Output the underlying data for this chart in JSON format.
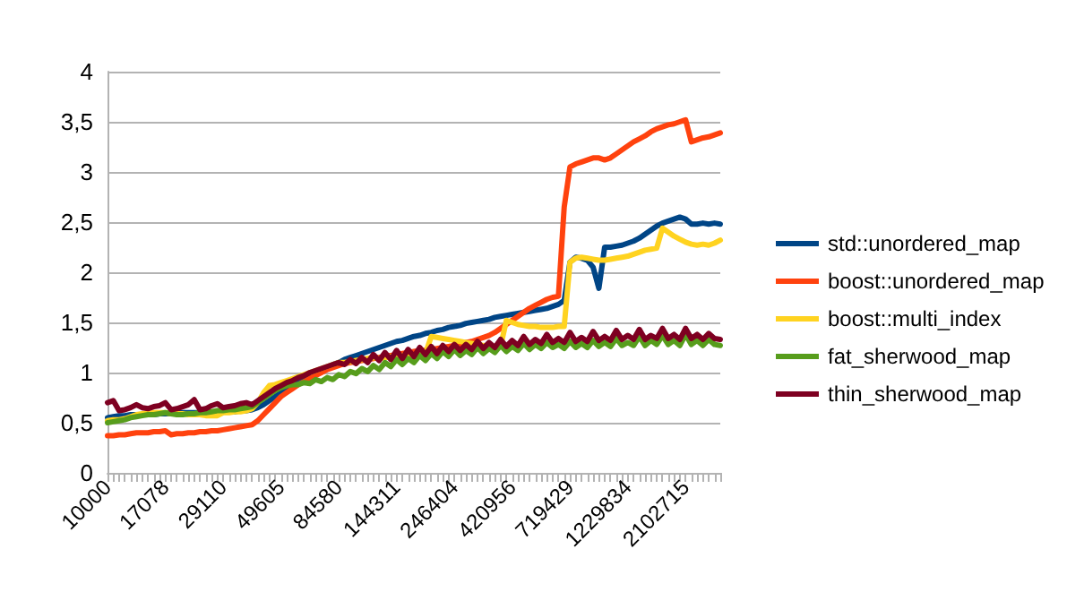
{
  "chart_data": {
    "type": "line",
    "categories": [
      "10000",
      null,
      null,
      null,
      null,
      null,
      null,
      null,
      null,
      null,
      "17078",
      null,
      null,
      null,
      null,
      null,
      null,
      null,
      null,
      null,
      "29110",
      null,
      null,
      null,
      null,
      null,
      null,
      null,
      null,
      null,
      "49605",
      null,
      null,
      null,
      null,
      null,
      null,
      null,
      null,
      null,
      "84580",
      null,
      null,
      null,
      null,
      null,
      null,
      null,
      null,
      null,
      "144311",
      null,
      null,
      null,
      null,
      null,
      null,
      null,
      null,
      null,
      "246404",
      null,
      null,
      null,
      null,
      null,
      null,
      null,
      null,
      null,
      "420956",
      null,
      null,
      null,
      null,
      null,
      null,
      null,
      null,
      null,
      "719429",
      null,
      null,
      null,
      null,
      null,
      null,
      null,
      null,
      null,
      "1229834",
      null,
      null,
      null,
      null,
      null,
      null,
      null,
      null,
      null,
      "2102715",
      null,
      null,
      null,
      null,
      null,
      null
    ],
    "series": [
      {
        "name": "std::unordered_map",
        "color": "#004586",
        "values": [
          0.55,
          0.56,
          0.57,
          0.57,
          0.58,
          0.58,
          0.58,
          0.58,
          0.58,
          0.59,
          0.59,
          0.59,
          0.6,
          0.6,
          0.6,
          0.6,
          0.6,
          0.6,
          0.6,
          0.61,
          0.61,
          0.61,
          0.61,
          0.62,
          0.62,
          0.63,
          0.65,
          0.68,
          0.72,
          0.76,
          0.8,
          0.84,
          0.87,
          0.9,
          0.93,
          0.96,
          0.99,
          1.02,
          1.05,
          1.08,
          1.1,
          1.13,
          1.15,
          1.17,
          1.19,
          1.21,
          1.23,
          1.25,
          1.27,
          1.29,
          1.31,
          1.32,
          1.34,
          1.36,
          1.37,
          1.39,
          1.4,
          1.42,
          1.43,
          1.45,
          1.46,
          1.47,
          1.49,
          1.5,
          1.51,
          1.52,
          1.53,
          1.55,
          1.56,
          1.57,
          1.58,
          1.59,
          1.6,
          1.61,
          1.62,
          1.63,
          1.64,
          1.66,
          1.68,
          1.72,
          2.1,
          2.15,
          2.14,
          2.12,
          2.05,
          1.84,
          2.25,
          2.25,
          2.26,
          2.27,
          2.29,
          2.31,
          2.34,
          2.38,
          2.42,
          2.46,
          2.49,
          2.51,
          2.53,
          2.55,
          2.53,
          2.48,
          2.48,
          2.49,
          2.48,
          2.49,
          2.48
        ]
      },
      {
        "name": "boost::unordered_map",
        "color": "#ff420e",
        "values": [
          0.37,
          0.37,
          0.38,
          0.38,
          0.39,
          0.4,
          0.4,
          0.4,
          0.41,
          0.41,
          0.42,
          0.38,
          0.39,
          0.39,
          0.4,
          0.4,
          0.41,
          0.41,
          0.42,
          0.42,
          0.43,
          0.44,
          0.45,
          0.46,
          0.47,
          0.48,
          0.52,
          0.58,
          0.64,
          0.7,
          0.76,
          0.8,
          0.84,
          0.88,
          0.91,
          0.94,
          0.97,
          1.0,
          1.03,
          1.05,
          1.07,
          1.09,
          1.1,
          1.11,
          1.12,
          1.13,
          1.14,
          1.15,
          1.16,
          1.17,
          1.18,
          1.19,
          1.2,
          1.21,
          1.22,
          1.22,
          1.23,
          1.24,
          1.25,
          1.26,
          1.27,
          1.28,
          1.3,
          1.31,
          1.33,
          1.35,
          1.37,
          1.4,
          1.44,
          1.48,
          1.52,
          1.56,
          1.6,
          1.64,
          1.67,
          1.7,
          1.73,
          1.75,
          1.76,
          2.65,
          3.05,
          3.08,
          3.1,
          3.12,
          3.14,
          3.14,
          3.12,
          3.14,
          3.18,
          3.22,
          3.26,
          3.3,
          3.33,
          3.36,
          3.4,
          3.43,
          3.45,
          3.47,
          3.48,
          3.5,
          3.52,
          3.3,
          3.32,
          3.34,
          3.35,
          3.37,
          3.39
        ]
      },
      {
        "name": "boost::multi_index",
        "color": "#ffd320",
        "values": [
          0.52,
          0.53,
          0.53,
          0.54,
          0.56,
          0.58,
          0.59,
          0.59,
          0.6,
          0.6,
          0.6,
          0.59,
          0.59,
          0.59,
          0.58,
          0.58,
          0.58,
          0.57,
          0.57,
          0.57,
          0.6,
          0.6,
          0.61,
          0.61,
          0.62,
          0.64,
          0.7,
          0.8,
          0.87,
          0.88,
          0.9,
          0.92,
          0.94,
          0.96,
          0.98,
          1.0,
          1.02,
          1.04,
          1.06,
          1.08,
          1.1,
          1.1,
          1.11,
          1.12,
          1.13,
          1.14,
          1.15,
          1.14,
          1.15,
          1.16,
          1.17,
          1.17,
          1.18,
          1.17,
          1.18,
          1.19,
          1.36,
          1.35,
          1.34,
          1.33,
          1.32,
          1.31,
          1.3,
          1.29,
          1.28,
          1.27,
          1.26,
          1.25,
          1.26,
          1.52,
          1.5,
          1.48,
          1.47,
          1.46,
          1.46,
          1.45,
          1.45,
          1.45,
          1.46,
          1.46,
          2.1,
          2.14,
          2.15,
          2.14,
          2.13,
          2.12,
          2.12,
          2.13,
          2.14,
          2.15,
          2.16,
          2.18,
          2.2,
          2.22,
          2.23,
          2.24,
          2.44,
          2.4,
          2.36,
          2.33,
          2.3,
          2.28,
          2.27,
          2.28,
          2.27,
          2.29,
          2.32
        ]
      },
      {
        "name": "fat_sherwood_map",
        "color": "#579d1c",
        "values": [
          0.5,
          0.51,
          0.52,
          0.53,
          0.55,
          0.56,
          0.57,
          0.58,
          0.58,
          0.59,
          0.6,
          0.59,
          0.58,
          0.58,
          0.59,
          0.59,
          0.6,
          0.6,
          0.61,
          0.62,
          0.62,
          0.63,
          0.63,
          0.64,
          0.65,
          0.66,
          0.7,
          0.74,
          0.78,
          0.82,
          0.85,
          0.87,
          0.88,
          0.88,
          0.9,
          0.89,
          0.93,
          0.91,
          0.95,
          0.93,
          0.98,
          0.96,
          1.01,
          0.99,
          1.04,
          1.01,
          1.07,
          1.03,
          1.1,
          1.06,
          1.13,
          1.08,
          1.14,
          1.1,
          1.17,
          1.12,
          1.19,
          1.14,
          1.21,
          1.16,
          1.23,
          1.17,
          1.22,
          1.18,
          1.25,
          1.19,
          1.24,
          1.2,
          1.27,
          1.21,
          1.26,
          1.22,
          1.29,
          1.23,
          1.28,
          1.24,
          1.3,
          1.25,
          1.28,
          1.24,
          1.31,
          1.25,
          1.29,
          1.25,
          1.32,
          1.26,
          1.3,
          1.26,
          1.34,
          1.27,
          1.3,
          1.27,
          1.36,
          1.27,
          1.32,
          1.28,
          1.37,
          1.28,
          1.32,
          1.27,
          1.38,
          1.28,
          1.32,
          1.27,
          1.33,
          1.28,
          1.27
        ]
      },
      {
        "name": "thin_sherwood_map",
        "color": "#7e0021",
        "values": [
          0.7,
          0.72,
          0.62,
          0.63,
          0.65,
          0.68,
          0.65,
          0.64,
          0.66,
          0.67,
          0.7,
          0.63,
          0.64,
          0.66,
          0.68,
          0.73,
          0.63,
          0.64,
          0.67,
          0.69,
          0.65,
          0.66,
          0.67,
          0.69,
          0.7,
          0.68,
          0.72,
          0.76,
          0.8,
          0.84,
          0.87,
          0.9,
          0.92,
          0.95,
          0.97,
          1.0,
          1.02,
          1.04,
          1.06,
          1.08,
          1.1,
          1.08,
          1.13,
          1.09,
          1.15,
          1.1,
          1.18,
          1.12,
          1.2,
          1.13,
          1.22,
          1.14,
          1.23,
          1.16,
          1.25,
          1.18,
          1.26,
          1.19,
          1.27,
          1.21,
          1.28,
          1.22,
          1.28,
          1.23,
          1.31,
          1.24,
          1.3,
          1.25,
          1.33,
          1.26,
          1.32,
          1.27,
          1.36,
          1.28,
          1.33,
          1.29,
          1.38,
          1.3,
          1.34,
          1.3,
          1.4,
          1.31,
          1.35,
          1.31,
          1.41,
          1.32,
          1.36,
          1.32,
          1.42,
          1.33,
          1.37,
          1.33,
          1.43,
          1.33,
          1.37,
          1.34,
          1.44,
          1.34,
          1.38,
          1.33,
          1.44,
          1.34,
          1.38,
          1.33,
          1.39,
          1.34,
          1.33
        ]
      }
    ],
    "ylim": [
      0,
      4
    ],
    "yticks": [
      0,
      {
        "value": 0.5,
        "label": "0,5"
      },
      1,
      {
        "value": 1.5,
        "label": "1,5"
      },
      2,
      {
        "value": 2.5,
        "label": "2,5"
      },
      3,
      {
        "value": 3.5,
        "label": "3,5"
      },
      4
    ],
    "grid": "y",
    "legend": "right",
    "marker": "none",
    "line_style": "solid"
  }
}
